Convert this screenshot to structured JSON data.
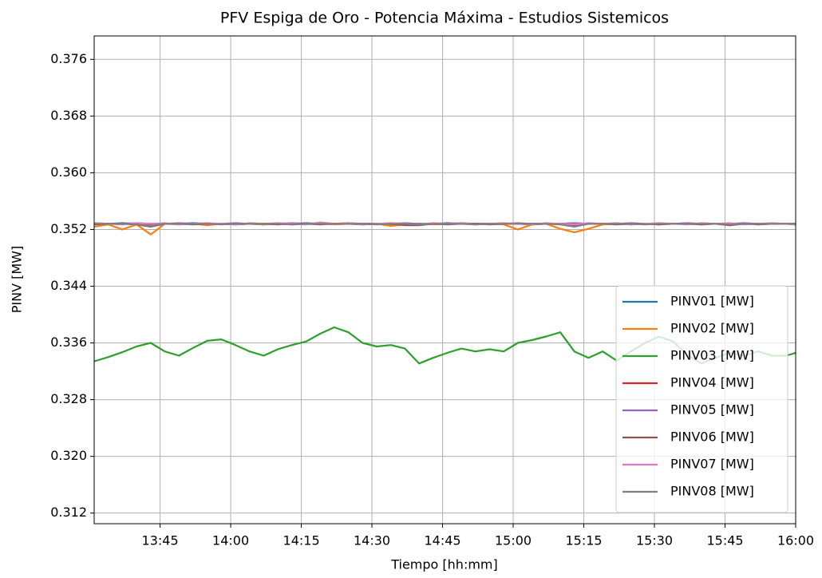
{
  "chart_data": {
    "type": "line",
    "title": "PFV Espiga de Oro - Potencia Máxima - Estudios Sistemicos",
    "x_label": "Tiempo [hh:mm]",
    "y_label": "PINV [MW]",
    "x": [
      "13:31",
      "13:34",
      "13:37",
      "13:40",
      "13:43",
      "13:46",
      "13:49",
      "13:52",
      "13:55",
      "13:58",
      "14:01",
      "14:04",
      "14:07",
      "14:10",
      "14:13",
      "14:16",
      "14:19",
      "14:22",
      "14:25",
      "14:28",
      "14:31",
      "14:34",
      "14:37",
      "14:40",
      "14:43",
      "14:46",
      "14:49",
      "14:52",
      "14:55",
      "14:58",
      "15:01",
      "15:04",
      "15:07",
      "15:10",
      "15:13",
      "15:16",
      "15:19",
      "15:22",
      "15:25",
      "15:28",
      "15:31",
      "15:34",
      "15:37",
      "15:40",
      "15:43",
      "15:46",
      "15:49",
      "15:52",
      "15:55",
      "15:58",
      "16:00"
    ],
    "xlim": [
      "13:31",
      "16:00"
    ],
    "xticks": [
      "13:45",
      "14:00",
      "14:15",
      "14:30",
      "14:45",
      "15:00",
      "15:15",
      "15:30",
      "15:45",
      "16:00"
    ],
    "ylim": [
      0.3105,
      0.3793
    ],
    "yticks": [
      0.312,
      {
        "value": 0.32,
        "label": "0.320"
      },
      0.328,
      0.336,
      0.344,
      0.352,
      {
        "value": 0.36,
        "label": "0.360"
      },
      0.368,
      0.376
    ],
    "grid": true,
    "legend": "lower right",
    "series": [
      {
        "name": "PINV01 [MW]",
        "color": "#1f77b4",
        "values": [
          0.3528,
          0.3528,
          0.3529,
          0.3528,
          0.3527,
          0.3528,
          0.3528,
          0.3529,
          0.3528,
          0.3528,
          0.3528,
          0.3528,
          0.3527,
          0.3528,
          0.3528,
          0.3529,
          0.3528,
          0.3528,
          0.3528,
          0.3528,
          0.3528,
          0.3527,
          0.3528,
          0.3528,
          0.3528,
          0.3529,
          0.3528,
          0.3528,
          0.3528,
          0.3528,
          0.3528,
          0.3528,
          0.3528,
          0.3528,
          0.3529,
          0.3528,
          0.3528,
          0.3528,
          0.3528,
          0.3528,
          0.3528,
          0.3528,
          0.3528,
          0.3528,
          0.3528,
          0.3527,
          0.3528,
          0.3528,
          0.3528,
          0.3528,
          0.3528
        ]
      },
      {
        "name": "PINV02 [MW]",
        "color": "#ff7f0e",
        "values": [
          0.3524,
          0.3527,
          0.352,
          0.3527,
          0.3513,
          0.3528,
          0.3527,
          0.3528,
          0.3526,
          0.3528,
          0.3527,
          0.3528,
          0.3527,
          0.3528,
          0.3527,
          0.3528,
          0.3529,
          0.3527,
          0.3528,
          0.3527,
          0.3528,
          0.3525,
          0.3527,
          0.3528,
          0.3527,
          0.3528,
          0.3528,
          0.3527,
          0.3528,
          0.3527,
          0.352,
          0.3527,
          0.3528,
          0.3521,
          0.3516,
          0.3521,
          0.3527,
          0.3528,
          0.3527,
          0.3528,
          0.3527,
          0.3528,
          0.3528,
          0.3527,
          0.3528,
          0.3526,
          0.3528,
          0.3527,
          0.3528,
          0.3528,
          0.3527
        ]
      },
      {
        "name": "PINV03 [MW]",
        "color": "#2ca02c",
        "values": [
          0.3334,
          0.334,
          0.3347,
          0.3355,
          0.336,
          0.3348,
          0.3342,
          0.3353,
          0.3363,
          0.3365,
          0.3357,
          0.3348,
          0.3342,
          0.3351,
          0.3357,
          0.3362,
          0.3373,
          0.3382,
          0.3375,
          0.336,
          0.3355,
          0.3357,
          0.3352,
          0.3331,
          0.3339,
          0.3346,
          0.3352,
          0.3348,
          0.3351,
          0.3348,
          0.336,
          0.3364,
          0.3369,
          0.3375,
          0.3348,
          0.3339,
          0.3348,
          0.3335,
          0.3348,
          0.336,
          0.3369,
          0.3362,
          0.3343,
          0.3331,
          0.3339,
          0.3346,
          0.3342,
          0.3348,
          0.3342,
          0.3342,
          0.3346
        ]
      },
      {
        "name": "PINV04 [MW]",
        "color": "#d62728",
        "values": [
          0.3528,
          0.3528,
          0.3528,
          0.3528,
          0.3526,
          0.3528,
          0.3528,
          0.3528,
          0.3528,
          0.3528,
          0.3528,
          0.3528,
          0.3528,
          0.3528,
          0.3528,
          0.3528,
          0.3528,
          0.3528,
          0.3528,
          0.3528,
          0.3528,
          0.3528,
          0.3528,
          0.3527,
          0.3528,
          0.3528,
          0.3528,
          0.3528,
          0.3528,
          0.3528,
          0.3528,
          0.3528,
          0.3528,
          0.3528,
          0.3527,
          0.3528,
          0.3528,
          0.3528,
          0.3528,
          0.3528,
          0.3528,
          0.3528,
          0.3528,
          0.3528,
          0.3528,
          0.3528,
          0.3528,
          0.3528,
          0.3528,
          0.3528,
          0.3528
        ]
      },
      {
        "name": "PINV05 [MW]",
        "color": "#9467bd",
        "values": [
          0.3529,
          0.3528,
          0.3528,
          0.3529,
          0.3528,
          0.3528,
          0.3529,
          0.3528,
          0.3528,
          0.3528,
          0.3529,
          0.3528,
          0.3528,
          0.3528,
          0.3529,
          0.3528,
          0.3528,
          0.3528,
          0.3529,
          0.3528,
          0.3528,
          0.3528,
          0.3529,
          0.3528,
          0.3528,
          0.3528,
          0.3529,
          0.3528,
          0.3528,
          0.3528,
          0.3529,
          0.3528,
          0.3528,
          0.3528,
          0.3529,
          0.3528,
          0.3528,
          0.3528,
          0.3529,
          0.3528,
          0.3528,
          0.3528,
          0.3529,
          0.3528,
          0.3528,
          0.3528,
          0.3529,
          0.3528,
          0.3528,
          0.3528,
          0.3528
        ]
      },
      {
        "name": "PINV06 [MW]",
        "color": "#8c564b",
        "values": [
          0.3527,
          0.3528,
          0.3528,
          0.3527,
          0.3524,
          0.3528,
          0.3528,
          0.3527,
          0.3528,
          0.3528,
          0.3527,
          0.3528,
          0.3528,
          0.3527,
          0.3528,
          0.3528,
          0.3527,
          0.3528,
          0.3528,
          0.3527,
          0.3528,
          0.3528,
          0.3526,
          0.3526,
          0.3528,
          0.3527,
          0.3528,
          0.3528,
          0.3527,
          0.3528,
          0.3528,
          0.3527,
          0.3528,
          0.3528,
          0.3525,
          0.3528,
          0.3528,
          0.3527,
          0.3528,
          0.3528,
          0.3527,
          0.3528,
          0.3528,
          0.3527,
          0.3528,
          0.3526,
          0.3528,
          0.3527,
          0.3528,
          0.3528,
          0.3527
        ]
      },
      {
        "name": "PINV07 [MW]",
        "color": "#e377c2",
        "values": [
          0.3529,
          0.3528,
          0.3527,
          0.3529,
          0.3528,
          0.3529,
          0.3527,
          0.3528,
          0.3529,
          0.3528,
          0.3527,
          0.3529,
          0.3528,
          0.3529,
          0.3528,
          0.3527,
          0.353,
          0.3528,
          0.3529,
          0.3527,
          0.3528,
          0.3529,
          0.3528,
          0.3527,
          0.3529,
          0.3528,
          0.3529,
          0.3527,
          0.3528,
          0.3529,
          0.3528,
          0.3527,
          0.3529,
          0.3528,
          0.3527,
          0.3529,
          0.3528,
          0.3529,
          0.3527,
          0.3528,
          0.3529,
          0.3528,
          0.3527,
          0.3529,
          0.3528,
          0.3529,
          0.3527,
          0.3528,
          0.3529,
          0.3528,
          0.3527
        ]
      },
      {
        "name": "PINV08 [MW]",
        "color": "#7f7f7f",
        "values": [
          0.3528,
          0.3528,
          0.3528,
          0.3527,
          0.3525,
          0.3528,
          0.3528,
          0.3528,
          0.3528,
          0.3527,
          0.3528,
          0.3528,
          0.3528,
          0.3528,
          0.3527,
          0.3528,
          0.3528,
          0.3528,
          0.3528,
          0.3528,
          0.3527,
          0.3528,
          0.3528,
          0.3527,
          0.3528,
          0.3528,
          0.3528,
          0.3527,
          0.3528,
          0.3528,
          0.3528,
          0.3528,
          0.3528,
          0.3527,
          0.3524,
          0.3528,
          0.3528,
          0.3528,
          0.3528,
          0.3527,
          0.3528,
          0.3528,
          0.3528,
          0.3528,
          0.3528,
          0.3527,
          0.3528,
          0.3528,
          0.3528,
          0.3528,
          0.3528
        ]
      }
    ]
  }
}
